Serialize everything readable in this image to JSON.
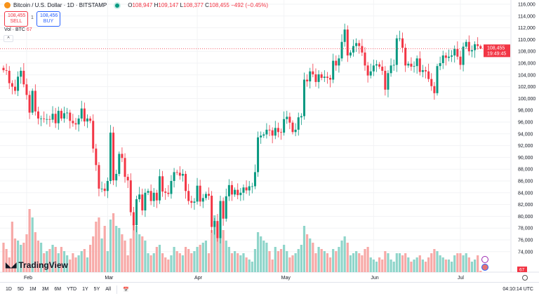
{
  "header": {
    "title": "Bitcoin / U.S. Dollar · 1D · BITSTAMP",
    "open_label": "O",
    "open": "108,947",
    "high_label": "H",
    "high": "109,147",
    "low_label": "L",
    "low": "108,377",
    "close_label": "C",
    "close": "108,455",
    "change": "−492 (−0.45%)"
  },
  "trade": {
    "sell_price": "108,455",
    "sell_label": "SELL",
    "spread": "1",
    "buy_price": "108,456",
    "buy_label": "BUY"
  },
  "volume": {
    "label": "Vol · BTC",
    "value": "67"
  },
  "collapse_icon": "chevron-up-icon",
  "brand": "TradingView",
  "current_price": {
    "price": "108,455",
    "countdown": "19:49:45"
  },
  "timeframes": [
    "1D",
    "5D",
    "1M",
    "3M",
    "6M",
    "YTD",
    "1Y",
    "5Y",
    "All"
  ],
  "clock": "04:10:14 UTC",
  "colors": {
    "up": "#089981",
    "down": "#f23645",
    "up_vol": "#8fd5ca",
    "down_vol": "#f7a9a7"
  },
  "chart_data": {
    "type": "candlestick",
    "start_date": "2025-01-24",
    "x_tick_labels": [
      "Feb",
      "Mar",
      "Apr",
      "May",
      "Jun",
      "Jul"
    ],
    "y_tick_labels": [
      "116,000",
      "114,000",
      "112,000",
      "110,000",
      "108,000",
      "106,000",
      "104,000",
      "102,000",
      "100,000",
      "98,000",
      "96,000",
      "94,000",
      "92,000",
      "90,000",
      "88,000",
      "86,000",
      "84,000",
      "82,000",
      "80,000",
      "78,000",
      "76,000",
      "74,000"
    ],
    "ylim": [
      73000,
      116500
    ],
    "close_thousands": [
      104.8,
      104.7,
      102.6,
      102.0,
      101.3,
      103.7,
      104.7,
      102.4,
      100.6,
      97.6,
      101.3,
      97.8,
      96.6,
      96.6,
      96.5,
      96.5,
      96.4,
      97.4,
      95.8,
      97.9,
      96.6,
      97.5,
      97.6,
      96.2,
      95.8,
      95.6,
      96.6,
      98.3,
      96.1,
      96.6,
      96.2,
      91.5,
      88.7,
      84.7,
      84.7,
      84.3,
      86.0,
      94.2,
      86.1,
      87.2,
      90.6,
      89.9,
      86.7,
      86.1,
      80.7,
      78.5,
      82.9,
      83.7,
      81.0,
      84.0,
      84.3,
      82.6,
      84.0,
      82.7,
      86.8,
      84.2,
      84.0,
      83.8,
      86.0,
      87.5,
      87.4,
      86.9,
      87.2,
      84.3,
      82.6,
      82.3,
      82.5,
      85.2,
      82.5,
      83.1,
      83.8,
      83.5,
      78.2,
      79.2,
      76.3,
      82.6,
      79.6,
      83.4,
      85.3,
      83.7,
      84.5,
      83.6,
      84.0,
      84.9,
      84.4,
      85.1,
      85.1,
      87.5,
      93.4,
      93.7,
      93.9,
      94.7,
      94.6,
      93.7,
      95.0,
      94.3,
      94.2,
      96.5,
      96.9,
      95.9,
      94.3,
      94.7,
      96.8,
      97.0,
      103.2,
      102.9,
      104.6,
      104.1,
      102.8,
      104.1,
      103.5,
      103.7,
      103.5,
      103.2,
      106.4,
      105.6,
      106.8,
      109.6,
      111.7,
      107.3,
      107.8,
      108.9,
      109.4,
      108.9,
      107.8,
      105.6,
      103.9,
      104.6,
      105.6,
      105.8,
      105.4,
      104.7,
      101.5,
      104.3,
      105.6,
      105.7,
      110.2,
      110.2,
      108.6,
      105.6,
      105.9,
      105.4,
      105.5,
      106.8,
      104.5,
      104.8,
      104.6,
      103.3,
      102.1,
      100.9,
      105.5,
      106.0,
      107.3,
      106.9,
      107.1,
      107.3,
      108.4,
      107.1,
      105.7,
      108.8,
      109.6,
      108.0,
      108.2,
      109.2,
      108.9,
      108.455
    ],
    "volume": [
      1400,
      1100,
      700,
      2400,
      1600,
      1500,
      1300,
      1400,
      1800,
      3000,
      2600,
      1900,
      1500,
      1400,
      900,
      1000,
      1100,
      1300,
      1200,
      900,
      1200,
      1000,
      800,
      600,
      900,
      700,
      800,
      1000,
      1100,
      700,
      1300,
      1700,
      2400,
      2600,
      1600,
      2200,
      1000,
      2500,
      2800,
      2200,
      2100,
      1800,
      1500,
      800,
      1600,
      2300,
      2200,
      1800,
      1700,
      1500,
      900,
      800,
      900,
      1200,
      1300,
      900,
      700,
      600,
      800,
      1200,
      1000,
      900,
      800,
      1200,
      1100,
      900,
      1000,
      1200,
      1300,
      1400,
      1500,
      900,
      2000,
      2700,
      2300,
      2600,
      2000,
      1500,
      1200,
      900,
      1000,
      900,
      800,
      900,
      700,
      600,
      500,
      1100,
      1900,
      1700,
      1500,
      1400,
      1000,
      600,
      1200,
      1000,
      1100,
      1300,
      1000,
      700,
      800,
      900,
      1100,
      1300,
      2200,
      1800,
      1600,
      1400,
      900,
      1200,
      1100,
      1000,
      900,
      700,
      1100,
      1000,
      1200,
      1500,
      1700,
      1400,
      800,
      900,
      1000,
      900,
      800,
      1100,
      1200,
      700,
      600,
      500,
      700,
      600,
      1000,
      900,
      600,
      500,
      900,
      900,
      800,
      900,
      700,
      500,
      600,
      700,
      800,
      600,
      500,
      700,
      900,
      1100,
      1000,
      800,
      700,
      600,
      600,
      500,
      800,
      900,
      900,
      800,
      900,
      700,
      500,
      600,
      800,
      67
    ]
  }
}
